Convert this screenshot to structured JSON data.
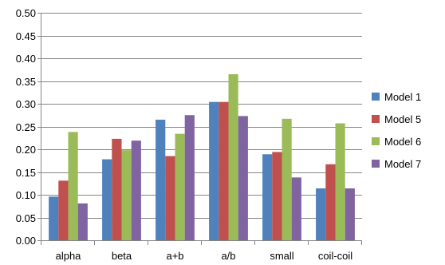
{
  "chart_data": {
    "type": "bar",
    "title": "",
    "xlabel": "",
    "ylabel": "",
    "categories": [
      "alpha",
      "beta",
      "a+b",
      "a/b",
      "small",
      "coil-coil"
    ],
    "ylim": [
      0,
      0.5
    ],
    "yticks": [
      "0.00",
      "0.05",
      "0.10",
      "0.15",
      "0.20",
      "0.25",
      "0.30",
      "0.35",
      "0.40",
      "0.45",
      "0.50"
    ],
    "grid": true,
    "legend_position": "right",
    "series": [
      {
        "name": "Model 1",
        "color": "#4F81BD",
        "values": [
          0.096,
          0.178,
          0.265,
          0.304,
          0.189,
          0.114
        ]
      },
      {
        "name": "Model 5",
        "color": "#C0504D",
        "values": [
          0.131,
          0.223,
          0.185,
          0.304,
          0.194,
          0.167
        ]
      },
      {
        "name": "Model 6",
        "color": "#9BBB59",
        "values": [
          0.238,
          0.198,
          0.234,
          0.365,
          0.267,
          0.257
        ]
      },
      {
        "name": "Model 7",
        "color": "#8064A2",
        "values": [
          0.081,
          0.219,
          0.275,
          0.273,
          0.138,
          0.114
        ]
      }
    ]
  }
}
